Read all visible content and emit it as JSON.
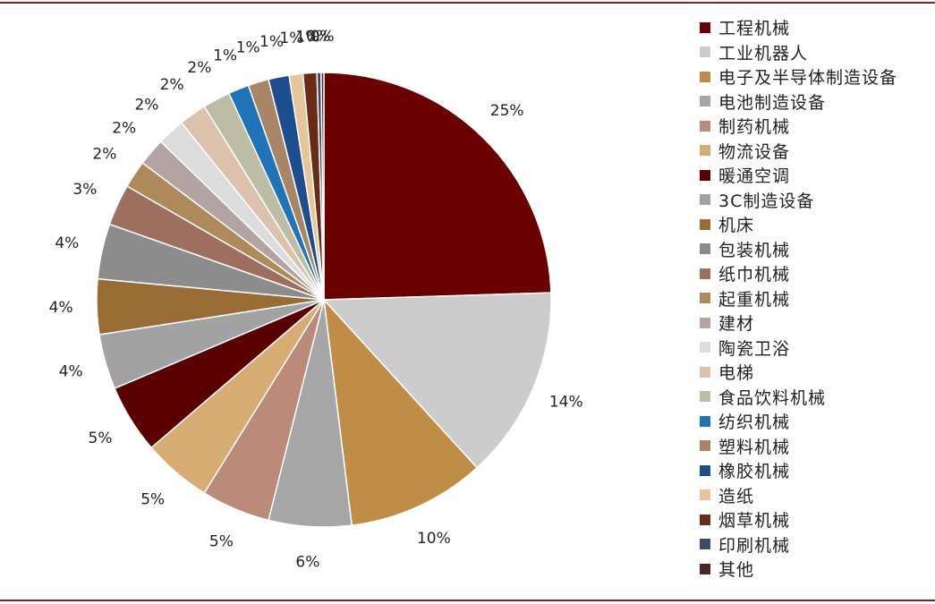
{
  "chart_data": {
    "type": "pie",
    "start_angle_deg": 0,
    "direction": "clockwise",
    "legend_position": "right",
    "series": [
      {
        "name": "工程机械",
        "value": 25,
        "label": "25%",
        "color": "#6b0000"
      },
      {
        "name": "工业机器人",
        "value": 14,
        "label": "14%",
        "color": "#cccccc"
      },
      {
        "name": "电子及半导体制造设备",
        "value": 10,
        "label": "10%",
        "color": "#c08d47"
      },
      {
        "name": "电池制造设备",
        "value": 6,
        "label": "6%",
        "color": "#a6a6a6"
      },
      {
        "name": "制药机械",
        "value": 5,
        "label": "5%",
        "color": "#bb8a78"
      },
      {
        "name": "物流设备",
        "value": 5,
        "label": "5%",
        "color": "#d6ac73"
      },
      {
        "name": "暖通空调",
        "value": 5,
        "label": "5%",
        "color": "#5a0000"
      },
      {
        "name": "3C制造设备",
        "value": 4,
        "label": "4%",
        "color": "#a2a2a2"
      },
      {
        "name": "机床",
        "value": 4,
        "label": "4%",
        "color": "#9a6c35"
      },
      {
        "name": "包装机械",
        "value": 4,
        "label": "4%",
        "color": "#8c8c8c"
      },
      {
        "name": "纸巾机械",
        "value": 3,
        "label": "3%",
        "color": "#9e6e5f"
      },
      {
        "name": "起重机械",
        "value": 2,
        "label": "2%",
        "color": "#ae8a5a"
      },
      {
        "name": "建材",
        "value": 2,
        "label": "2%",
        "color": "#b3a3a3"
      },
      {
        "name": "陶瓷卫浴",
        "value": 2,
        "label": "2%",
        "color": "#dcdcdc"
      },
      {
        "name": "电梯",
        "value": 2,
        "label": "2%",
        "color": "#dcc2ad"
      },
      {
        "name": "食品饮料机械",
        "value": 2,
        "label": "2%",
        "color": "#bdbda5"
      },
      {
        "name": "纺织机械",
        "value": 1.5,
        "label": "1%",
        "color": "#1f74b8"
      },
      {
        "name": "塑料机械",
        "value": 1.5,
        "label": "1%",
        "color": "#a88566"
      },
      {
        "name": "橡胶机械",
        "value": 1.5,
        "label": "1%",
        "color": "#1d4f8f"
      },
      {
        "name": "造纸",
        "value": 1,
        "label": "1%",
        "color": "#e6c598"
      },
      {
        "name": "烟草机械",
        "value": 1,
        "label": "1%",
        "color": "#6a2a16"
      },
      {
        "name": "印刷机械",
        "value": 0.3,
        "label": "0%",
        "color": "#3c4a6b"
      },
      {
        "name": "其他",
        "value": 0.2,
        "label": "0%",
        "color": "#4a2722"
      }
    ]
  }
}
